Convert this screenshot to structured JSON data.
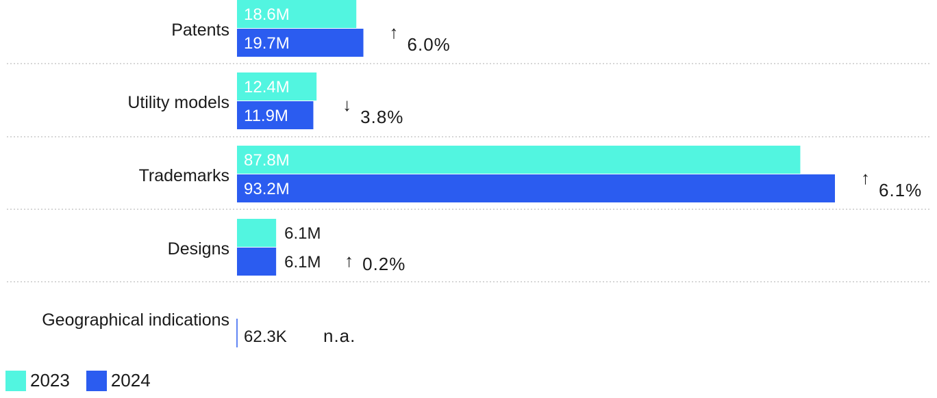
{
  "colors": {
    "series_2023": "#52f5e0",
    "series_2024": "#2b5cf0",
    "separator": "#c8c8c8",
    "text": "#1a1a1a",
    "inner_label": "#ffffff"
  },
  "legend": [
    {
      "label": "2023",
      "color": "#52f5e0"
    },
    {
      "label": "2024",
      "color": "#2b5cf0"
    }
  ],
  "chart_data": {
    "type": "bar",
    "orientation": "horizontal",
    "categories": [
      "Patents",
      "Utility models",
      "Trademarks",
      "Designs",
      "Geographical indications"
    ],
    "series": [
      {
        "name": "2023",
        "values": [
          18.6,
          12.4,
          87.8,
          6.1,
          null
        ],
        "labels": [
          "18.6M",
          "12.4M",
          "87.8M",
          "6.1M",
          ""
        ]
      },
      {
        "name": "2024",
        "values": [
          19.7,
          11.9,
          93.2,
          6.1,
          0.0623
        ],
        "labels": [
          "19.7M",
          "11.9M",
          "93.2M",
          "6.1M",
          "62.3K"
        ]
      }
    ],
    "changes": [
      {
        "arrow": "↑",
        "text": "6.0%"
      },
      {
        "arrow": "↓",
        "text": "3.8%"
      },
      {
        "arrow": "↑",
        "text": "6.1%"
      },
      {
        "arrow": "↑",
        "text": "0.2%"
      },
      {
        "arrow": "",
        "text": "n.a."
      }
    ],
    "units": "millions",
    "grid": false,
    "legend_position": "bottom-left"
  }
}
